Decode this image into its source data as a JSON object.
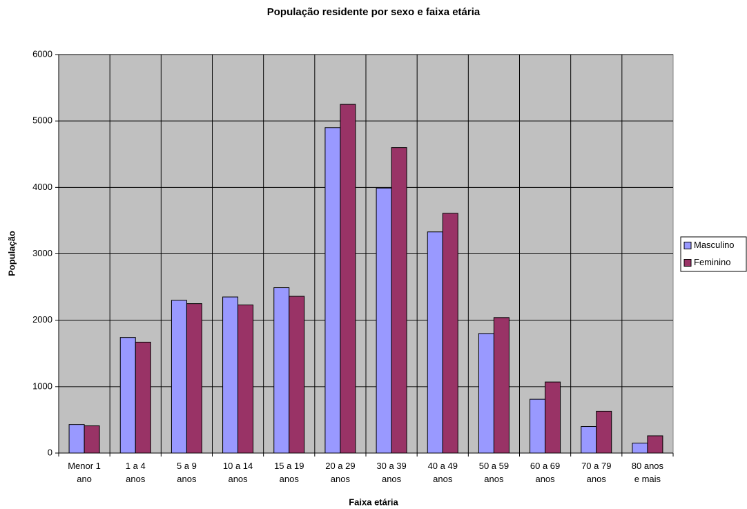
{
  "chart_data": {
    "type": "bar",
    "title": "População residente por sexo e faixa etária",
    "x_label": "Faixa etária",
    "y_label": "População",
    "categories": [
      "Menor 1\nano",
      "1 a 4\nanos",
      "5 a 9\nanos",
      "10 a 14\nanos",
      "15 a 19\nanos",
      "20 a 29\nanos",
      "30 a 39\nanos",
      "40 a 49\nanos",
      "50 a 59\nanos",
      "60 a 69\nanos",
      "70 a 79\nanos",
      "80 anos\ne mais"
    ],
    "series": [
      {
        "name": "Masculino",
        "color": "#9999ff",
        "values": [
          430,
          1740,
          2300,
          2350,
          2490,
          4900,
          3990,
          3330,
          1800,
          810,
          400,
          150
        ]
      },
      {
        "name": "Feminino",
        "color": "#993366",
        "values": [
          410,
          1670,
          2250,
          2230,
          2360,
          5250,
          4600,
          3610,
          2040,
          1070,
          630,
          260
        ]
      }
    ],
    "ylim": [
      0,
      6000
    ],
    "yticks": [
      0,
      1000,
      2000,
      3000,
      4000,
      5000,
      6000
    ],
    "grid": true,
    "legend": "right"
  }
}
